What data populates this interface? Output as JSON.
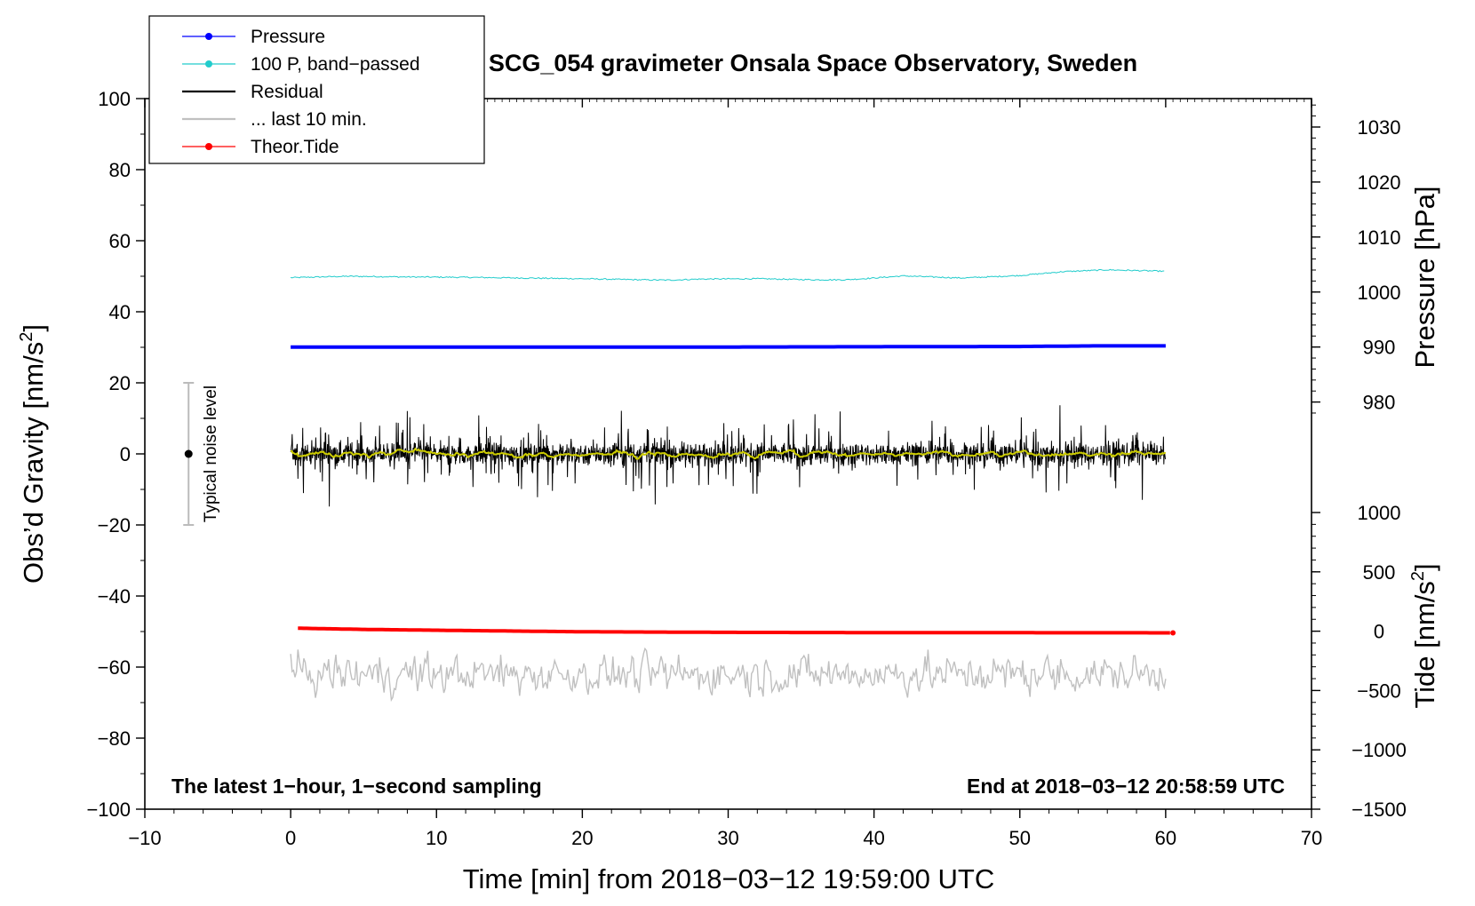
{
  "chart_data": {
    "type": "line",
    "title": "SCG_054 gravimeter Onsala Space Observatory, Sweden",
    "xlabel": "Time [min] from 2018−03−12 19:59:00 UTC",
    "ylabel_left": "Obs’d Gravity [nm/s",
    "ylabel_left_sup": "2",
    "ylabel_left_end": "]",
    "ylabel_right_pressure": "Pressure [hPa]",
    "ylabel_right_tide": "Tide [nm/s",
    "ylabel_right_tide_sup": "2",
    "ylabel_right_tide_end": "]",
    "xlim": [
      -10,
      70
    ],
    "ylim": [
      -100,
      100
    ],
    "x_ticks": [
      {
        "v": -10,
        "label": "−10"
      },
      {
        "v": 0,
        "label": "0"
      },
      {
        "v": 10,
        "label": "10"
      },
      {
        "v": 20,
        "label": "20"
      },
      {
        "v": 30,
        "label": "30"
      },
      {
        "v": 40,
        "label": "40"
      },
      {
        "v": 50,
        "label": "50"
      },
      {
        "v": 60,
        "label": "60"
      },
      {
        "v": 70,
        "label": "70"
      }
    ],
    "y_ticks": [
      {
        "v": 100,
        "label": "100"
      },
      {
        "v": 80,
        "label": "80"
      },
      {
        "v": 60,
        "label": "60"
      },
      {
        "v": 40,
        "label": "40"
      },
      {
        "v": 20,
        "label": "20"
      },
      {
        "v": 0,
        "label": "0"
      },
      {
        "v": -20,
        "label": "−20"
      },
      {
        "v": -40,
        "label": "−40"
      },
      {
        "v": -60,
        "label": "−60"
      },
      {
        "v": -80,
        "label": "−80"
      },
      {
        "v": -100,
        "label": "−100"
      }
    ],
    "pressure_axis": {
      "map": {
        "p1": 1030,
        "g1": 92,
        "p2": 980,
        "g2": 14.6
      },
      "ticks": [
        {
          "v": 1030,
          "label": "1030"
        },
        {
          "v": 1020,
          "label": "1020"
        },
        {
          "v": 1010,
          "label": "1010"
        },
        {
          "v": 1000,
          "label": "1000"
        },
        {
          "v": 990,
          "label": "990"
        },
        {
          "v": 980,
          "label": "980"
        }
      ]
    },
    "tide_axis": {
      "map": {
        "t1": 1000,
        "g1": -16.5,
        "t2": -1500,
        "g2": -100
      },
      "ticks": [
        {
          "v": 1000,
          "label": "1000"
        },
        {
          "v": 500,
          "label": "500"
        },
        {
          "v": 0,
          "label": "0"
        },
        {
          "v": -500,
          "label": "−500"
        },
        {
          "v": -1000,
          "label": "−1000"
        },
        {
          "v": -1500,
          "label": "−1500"
        }
      ]
    },
    "series": [
      {
        "name": "Pressure",
        "color": "#0000ff",
        "axis": "pressure",
        "x": [
          0,
          10,
          20,
          30,
          40,
          50,
          55,
          60
        ],
        "y": [
          990.0,
          990.0,
          990.0,
          990.0,
          990.05,
          990.1,
          990.2,
          990.2
        ]
      },
      {
        "name": "100 P, band−passed",
        "color": "#22cccc",
        "axis": "gravity",
        "x": [
          0,
          4,
          8,
          12,
          16,
          20,
          24,
          26,
          28,
          32,
          36,
          38,
          40,
          42,
          46,
          50,
          53,
          56,
          58,
          60
        ],
        "y": [
          49.6,
          50.0,
          49.8,
          49.7,
          49.5,
          49.3,
          49.0,
          48.9,
          49.2,
          49.3,
          49.0,
          49.0,
          49.5,
          50.1,
          49.5,
          50.2,
          51.3,
          51.8,
          51.6,
          51.4
        ]
      },
      {
        "name": "Residual",
        "color": "#000000",
        "axis": "gravity",
        "range": [
          0,
          60
        ],
        "noise_amplitude": 5
      },
      {
        "name": "... last 10 min.",
        "color": "#c0c0c0",
        "axis": "gravity",
        "range": [
          0,
          60
        ],
        "center": -62,
        "noise_amplitude": 6
      },
      {
        "name": "Theor.Tide",
        "color": "#ff0000",
        "axis": "tide",
        "x": [
          0.5,
          5,
          10,
          20,
          30,
          40,
          50,
          60.5
        ],
        "y": [
          25,
          15,
          8,
          -5,
          -10,
          -12,
          -13,
          -14
        ]
      }
    ],
    "smoothed_residual_color": "#cccc00",
    "noise_indicator": {
      "label": "Typical noise level",
      "x": -7,
      "y": 0,
      "half_range": 20
    },
    "annotation_left": "The latest 1−hour, 1−second sampling",
    "annotation_right": "End at 2018−03−12 20:58:59 UTC",
    "legend": [
      {
        "label": "Pressure",
        "color": "#0000ff",
        "marker": true
      },
      {
        "label": "100 P, band−passed",
        "color": "#22cccc",
        "marker": true
      },
      {
        "label": "Residual",
        "color": "#000000",
        "marker": false
      },
      {
        "label": "... last 10 min.",
        "color": "#c0c0c0",
        "marker": false
      },
      {
        "label": "Theor.Tide",
        "color": "#ff0000",
        "marker": true
      }
    ]
  }
}
